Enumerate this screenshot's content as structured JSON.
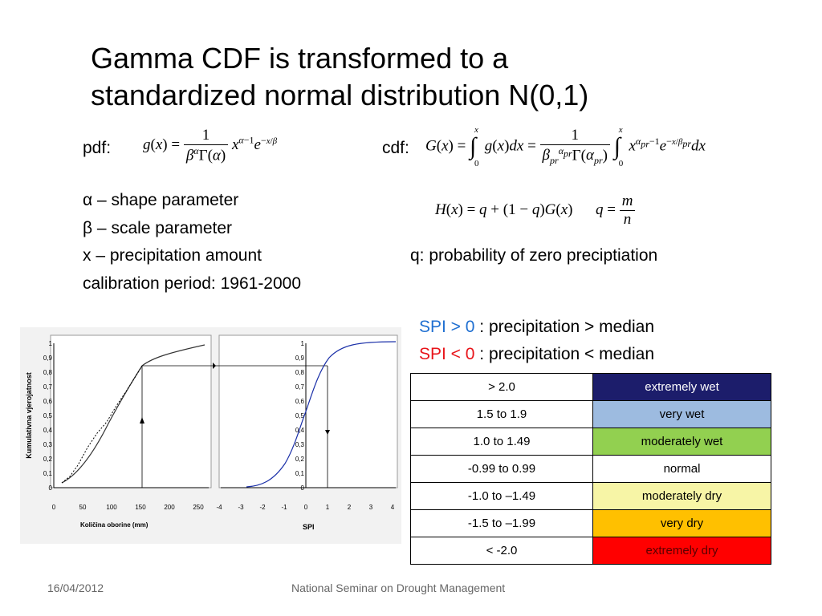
{
  "slide": {
    "title_line1": "Gamma CDF is transformed to a",
    "title_line2": "standardized normal distribution N(0,1)",
    "pdf_label": "pdf:",
    "cdf_label": "cdf:",
    "params": [
      {
        "symbol": "α",
        "text": " – shape parameter"
      },
      {
        "symbol": "β",
        "text": " – scale parameter"
      },
      {
        "symbol": "",
        "text": "x – precipitation amount"
      },
      {
        "symbol": "",
        "text": "calibration period: 1961-2000"
      }
    ],
    "q_note": "q: probability of zero preciptiation",
    "spi_pos": {
      "label": "SPI > 0",
      "text": " : precipitation > median",
      "color": "#1f6fd1"
    },
    "spi_neg": {
      "label": "SPI < 0",
      "text": " : precipitation < median",
      "color": "#e8141a"
    },
    "footer_date": "16/04/2012",
    "footer_text": "National Seminar on Drought Management"
  },
  "table": {
    "rows": [
      {
        "range": "> 2.0",
        "category": "extremely wet",
        "bg": "#1c1d6b",
        "fg": "#ffffff"
      },
      {
        "range": "1.5 to 1.9",
        "category": "very wet",
        "bg": "#9dbbe0",
        "fg": "#000000"
      },
      {
        "range": "1.0 to 1.49",
        "category": "moderately wet",
        "bg": "#92d050",
        "fg": "#000000"
      },
      {
        "range": "-0.99 to 0.99",
        "category": "normal",
        "bg": "#ffffff",
        "fg": "#000000"
      },
      {
        "range": "-1.0 to –1.49",
        "category": "moderately  dry",
        "bg": "#f7f5a6",
        "fg": "#000000"
      },
      {
        "range": "-1.5 to –1.99",
        "category": "very dry",
        "bg": "#ffc000",
        "fg": "#000000"
      },
      {
        "range": "< -2.0",
        "category": "extremely dry",
        "bg": "#ff0000",
        "fg": "#5a0000"
      }
    ]
  },
  "figure": {
    "left": {
      "ylabel": "Kumulativna vjerojatnost",
      "xlabel": "Količina oborine (mm)",
      "yticks": [
        "0",
        "0,1",
        "0,2",
        "0,3",
        "0,4",
        "0,5",
        "0,6",
        "0,7",
        "0,8",
        "0,9",
        "1"
      ],
      "xticks": [
        "0",
        "50",
        "100",
        "150",
        "200",
        "250"
      ]
    },
    "right": {
      "xlabel": "SPI",
      "yticks": [
        "0",
        "0,1",
        "0,2",
        "0,3",
        "0,4",
        "0,5",
        "0,6",
        "0,7",
        "0,8",
        "0,9",
        "1"
      ],
      "xticks": [
        "-4",
        "-3",
        "-2",
        "-1",
        "0",
        "1",
        "2",
        "3",
        "4"
      ]
    }
  }
}
